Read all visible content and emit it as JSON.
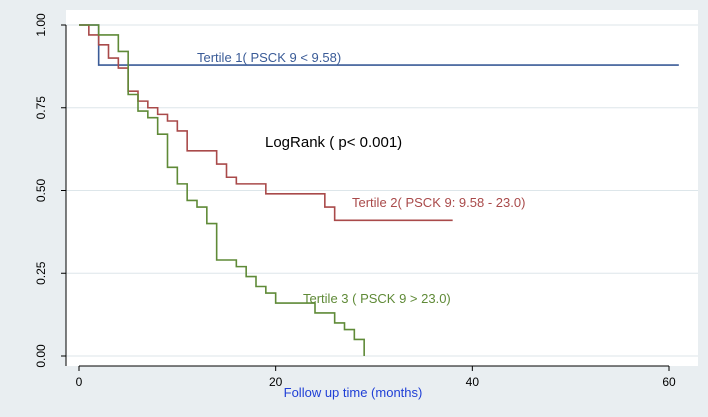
{
  "chart_data": {
    "type": "line",
    "title": "",
    "xlabel": "Follow up time (months)",
    "ylabel": "",
    "xlim": [
      0,
      62
    ],
    "ylim": [
      0,
      1
    ],
    "x_ticks": [
      0,
      20,
      40,
      60
    ],
    "y_ticks": [
      0,
      0.25,
      0.5,
      0.75,
      1
    ],
    "x_tick_labels": [
      "0",
      "20",
      "40",
      "60"
    ],
    "y_tick_labels": [
      "0.00",
      "0.25",
      "0.50",
      "0.75",
      "1.00"
    ],
    "grid": true,
    "annotation": "LogRank ( p< 0.001)",
    "series": [
      {
        "name": "Tertile 1( PSCK 9 < 9.58)",
        "color": "#3a5b97",
        "x": [
          0,
          2,
          61
        ],
        "y": [
          1.0,
          0.879,
          0.879
        ]
      },
      {
        "name": "Tertile 2( PSCK 9:  9.58 - 23.0)",
        "color": "#a94a4a",
        "x": [
          0,
          1,
          2,
          3,
          4,
          5,
          6,
          7,
          8,
          9,
          10,
          11,
          14,
          15,
          16,
          19,
          25,
          26,
          38
        ],
        "y": [
          1.0,
          0.97,
          0.94,
          0.9,
          0.87,
          0.8,
          0.77,
          0.75,
          0.73,
          0.71,
          0.68,
          0.62,
          0.58,
          0.54,
          0.52,
          0.49,
          0.45,
          0.41,
          0.41
        ]
      },
      {
        "name": "Tertile 3 ( PSCK 9 > 23.0)",
        "color": "#5f8a37",
        "x": [
          0,
          2,
          4,
          5,
          6,
          7,
          8,
          9,
          10,
          11,
          12,
          13,
          14,
          16,
          17,
          18,
          19,
          20,
          23,
          24,
          26,
          27,
          28,
          29
        ],
        "y": [
          1.0,
          0.97,
          0.92,
          0.79,
          0.74,
          0.72,
          0.67,
          0.57,
          0.52,
          0.47,
          0.45,
          0.4,
          0.29,
          0.27,
          0.24,
          0.21,
          0.19,
          0.16,
          0.16,
          0.13,
          0.1,
          0.08,
          0.05,
          0.0
        ]
      }
    ]
  }
}
